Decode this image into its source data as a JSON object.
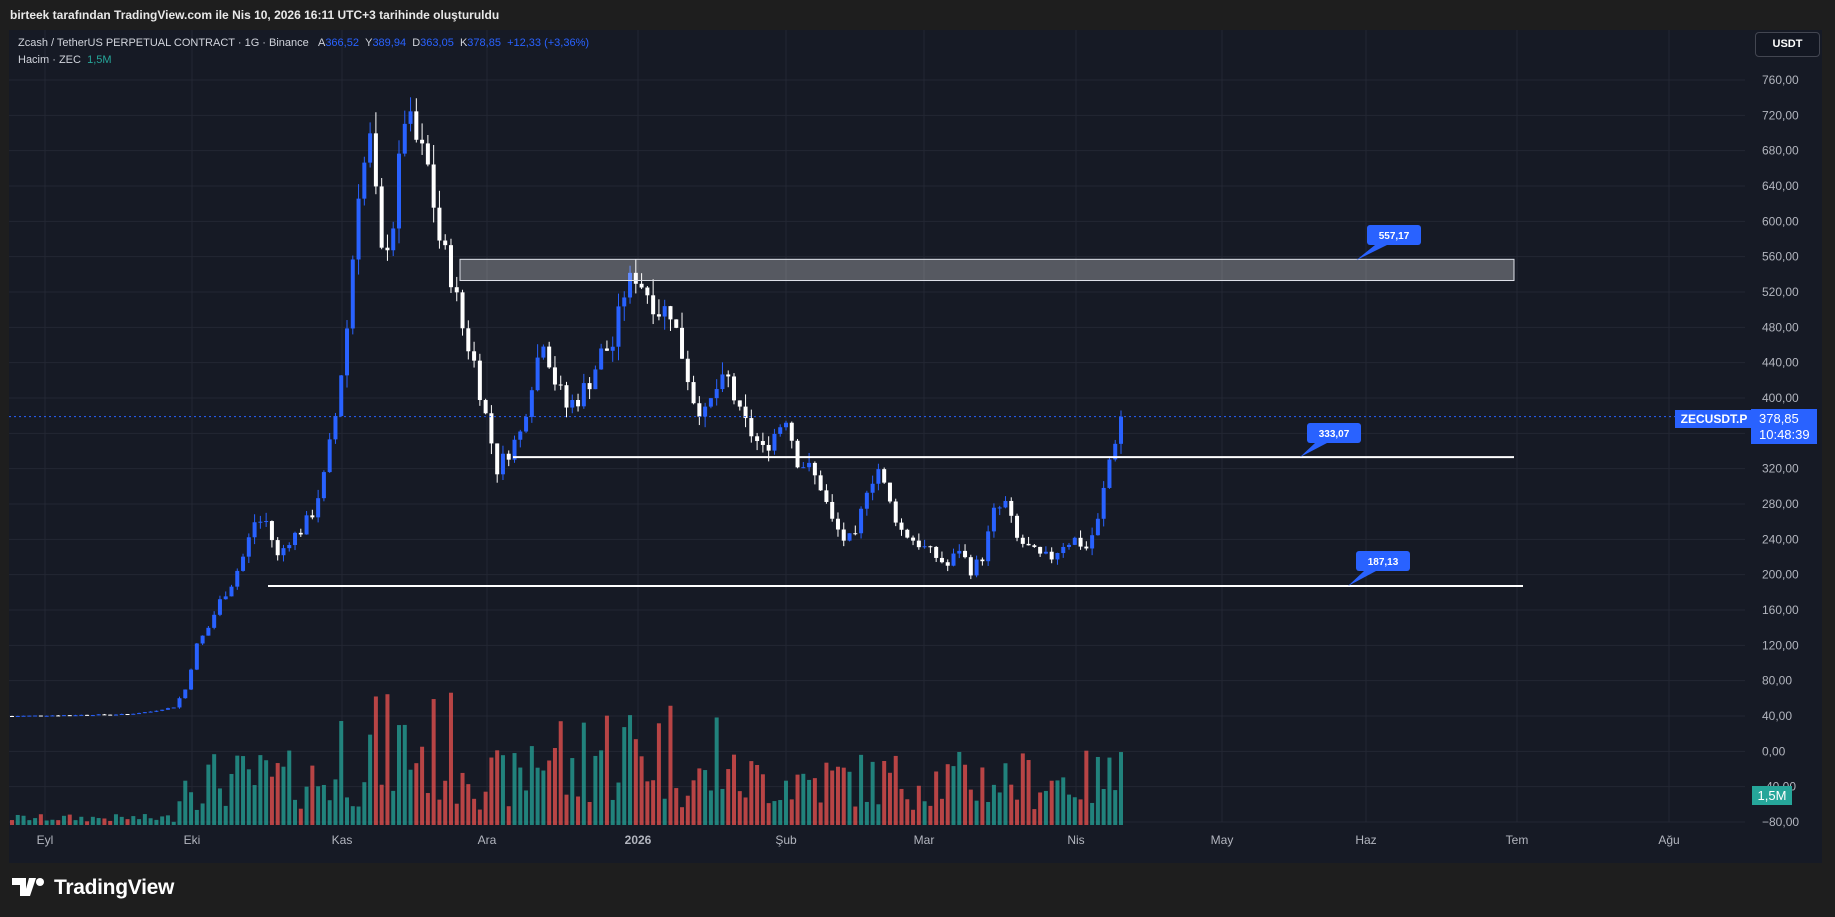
{
  "header": {
    "credit": "birteek tarafından TradingView.com ile Nis 10, 2026 16:11 UTC+3 tarihinde oluşturuldu"
  },
  "legend": {
    "symbol": "Zcash / TetherUS PERPETUAL CONTRACT · 1G · Binance",
    "open_label": "A",
    "open": "366,52",
    "high_label": "Y",
    "high": "389,94",
    "low_label": "D",
    "low": "363,05",
    "close_label": "K",
    "close": "378,85",
    "change": "+12,33 (+3,36%)",
    "volume_label": "Hacim · ZEC",
    "volume": "1,5M"
  },
  "currency_button": "USDT",
  "price_tag": {
    "symbol": "ZECUSDT.P",
    "price": "378,85",
    "countdown": "10:48:39"
  },
  "volume_tag": "1,5M",
  "footer": {
    "brand": "TradingView"
  },
  "colors": {
    "background": "#161a25",
    "up": "#2962ff",
    "down": "#ffffff",
    "vol_up": "#26a69a",
    "vol_down": "#ef5350",
    "accent": "#2962ff"
  },
  "chart_data": {
    "type": "candlestick",
    "y_axis": {
      "min": -80,
      "max": 760,
      "ticks": [
        "760,00",
        "720,00",
        "680,00",
        "640,00",
        "600,00",
        "560,00",
        "520,00",
        "480,00",
        "440,00",
        "400,00",
        "360,00",
        "320,00",
        "280,00",
        "240,00",
        "200,00",
        "160,00",
        "120,00",
        "80,00",
        "40,00",
        "0,00",
        "-40,00",
        "−80,00"
      ]
    },
    "x_axis": {
      "ticks": [
        "Eyl",
        "Eki",
        "Kas",
        "Ara",
        "2026",
        "Şub",
        "Mar",
        "Nis",
        "May",
        "Haz",
        "Tem",
        "Ağu"
      ]
    },
    "grid": true,
    "zone": {
      "low": 533,
      "high": 557,
      "label": "557,17"
    },
    "levels": [
      {
        "value": 333.07,
        "label": "333,07"
      },
      {
        "value": 187.13,
        "label": "187,13"
      }
    ],
    "last_price": 378.85,
    "path_points": [
      [
        0,
        40
      ],
      [
        10,
        41
      ],
      [
        20,
        42
      ],
      [
        24,
        45
      ],
      [
        28,
        50
      ],
      [
        30,
        70
      ],
      [
        32,
        120
      ],
      [
        34,
        140
      ],
      [
        36,
        170
      ],
      [
        38,
        190
      ],
      [
        40,
        220
      ],
      [
        42,
        260
      ],
      [
        44,
        260
      ],
      [
        46,
        220
      ],
      [
        48,
        240
      ],
      [
        50,
        250
      ],
      [
        52,
        270
      ],
      [
        54,
        310
      ],
      [
        56,
        380
      ],
      [
        58,
        480
      ],
      [
        60,
        640
      ],
      [
        62,
        690
      ],
      [
        64,
        560
      ],
      [
        66,
        600
      ],
      [
        68,
        720
      ],
      [
        70,
        690
      ],
      [
        72,
        660
      ],
      [
        74,
        580
      ],
      [
        76,
        540
      ],
      [
        78,
        480
      ],
      [
        80,
        440
      ],
      [
        82,
        380
      ],
      [
        84,
        320
      ],
      [
        86,
        340
      ],
      [
        88,
        360
      ],
      [
        90,
        420
      ],
      [
        92,
        470
      ],
      [
        94,
        420
      ],
      [
        96,
        390
      ],
      [
        98,
        400
      ],
      [
        100,
        420
      ],
      [
        102,
        450
      ],
      [
        104,
        460
      ],
      [
        106,
        520
      ],
      [
        108,
        540
      ],
      [
        110,
        520
      ],
      [
        112,
        500
      ],
      [
        114,
        500
      ],
      [
        116,
        450
      ],
      [
        118,
        400
      ],
      [
        120,
        380
      ],
      [
        122,
        410
      ],
      [
        124,
        420
      ],
      [
        126,
        380
      ],
      [
        128,
        360
      ],
      [
        130,
        340
      ],
      [
        132,
        360
      ],
      [
        134,
        380
      ],
      [
        136,
        330
      ],
      [
        138,
        320
      ],
      [
        140,
        300
      ],
      [
        142,
        260
      ],
      [
        144,
        240
      ],
      [
        146,
        240
      ],
      [
        148,
        300
      ],
      [
        150,
        320
      ],
      [
        152,
        280
      ],
      [
        154,
        250
      ],
      [
        156,
        240
      ],
      [
        158,
        230
      ],
      [
        160,
        220
      ],
      [
        162,
        210
      ],
      [
        164,
        230
      ],
      [
        166,
        205
      ],
      [
        168,
        220
      ],
      [
        170,
        270
      ],
      [
        172,
        280
      ],
      [
        174,
        240
      ],
      [
        176,
        230
      ],
      [
        178,
        220
      ],
      [
        180,
        220
      ],
      [
        182,
        235
      ],
      [
        184,
        240
      ],
      [
        186,
        230
      ],
      [
        188,
        260
      ],
      [
        190,
        330
      ],
      [
        192,
        378
      ]
    ],
    "volume_bars": 150
  }
}
